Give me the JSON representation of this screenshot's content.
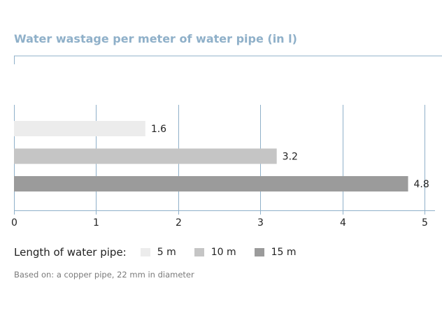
{
  "colors": {
    "title": "#8fb0c9",
    "axis": "#8fb0c9",
    "grid": "#8fb0c9",
    "series": [
      "#ececec",
      "#c5c5c5",
      "#9b9b9b"
    ]
  },
  "legend": {
    "title": "Length of water pipe:"
  },
  "footnote": "Based on: a copper pipe, 22 mm in diameter",
  "chart_data": {
    "type": "bar",
    "orientation": "horizontal",
    "title": "Water wastage per meter of water pipe (in l)",
    "xlabel": "",
    "ylabel": "",
    "xlim": [
      0,
      5
    ],
    "xticks": [
      "0",
      "1",
      "2",
      "3",
      "4",
      "5"
    ],
    "grid": true,
    "legend_position": "bottom",
    "series": [
      {
        "name": "5 m",
        "value": 1.6,
        "label": "1.6"
      },
      {
        "name": "10 m",
        "value": 3.2,
        "label": "3.2"
      },
      {
        "name": "15 m",
        "value": 4.8,
        "label": "4.8"
      }
    ]
  }
}
